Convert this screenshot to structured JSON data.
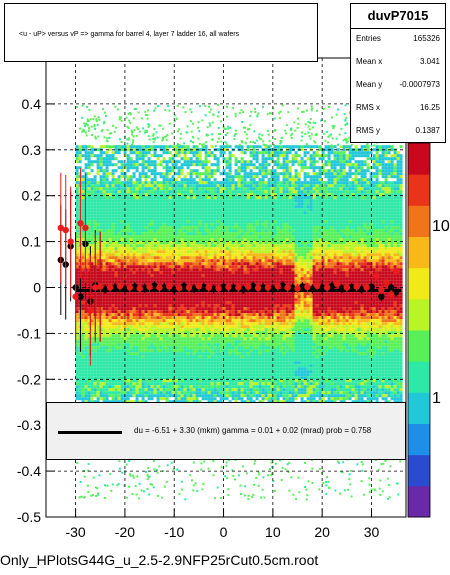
{
  "chart_data": {
    "type": "scatter",
    "subtype": "2D histogram (colz) with profile overlay and fitted line",
    "histogram_name": "duvP7015",
    "title": "<u - uP>       versus   vP =>  gamma for barrel 4, layer 7 ladder 16, all wafers",
    "xlabel": "",
    "ylabel": "",
    "xlim": [
      -36,
      37
    ],
    "ylim": [
      -0.5,
      0.5
    ],
    "x_ticks": [
      -30,
      -20,
      -10,
      0,
      10,
      20,
      30
    ],
    "y_ticks": [
      -0.5,
      -0.4,
      -0.3,
      -0.2,
      -0.1,
      0,
      0.1,
      0.2,
      0.3,
      0.4
    ],
    "y_tick_labels": [
      "-0.5",
      "-0.4",
      "-0.3",
      "-0.2",
      "-0.1",
      "0",
      "0.1",
      "0.2",
      "0.3",
      "0.4"
    ],
    "colorbar_ticks": [
      {
        "value": 1,
        "label": "1"
      },
      {
        "value": 10,
        "label": "10"
      }
    ],
    "colorbar_scale": "log",
    "colorbar_colors": [
      "#6a2aa8",
      "#2a4ad0",
      "#1e8fe8",
      "#22c8d8",
      "#2ee8a8",
      "#58f058",
      "#b8f428",
      "#f0ea1a",
      "#f8b81a",
      "#f07418",
      "#e83418",
      "#c8081c"
    ],
    "grid": true,
    "stats": {
      "Entries": "165326",
      "Mean x": "3.041",
      "Mean y": "-0.0007973",
      "RMS x": "16.25",
      "RMS y": "0.1387"
    },
    "fit_text": "du =    -6.51 +   3.30 (mkm) gamma =     0.01 +   0.02 (mrad) prob = 0.758",
    "fit_line": {
      "x": [
        -30,
        36
      ],
      "y": [
        -0.0065,
        -0.0065
      ]
    },
    "density_region": {
      "x": [
        -30,
        36
      ],
      "y": [
        -0.28,
        0.31
      ]
    },
    "profile_black": {
      "x": [
        -33,
        -32,
        -31,
        -30,
        -29,
        -28,
        -27,
        -26,
        -25,
        -24,
        -22,
        -20,
        -18,
        -16,
        -14,
        -12,
        -10,
        -8,
        -6,
        -4,
        -2,
        0,
        2,
        4,
        6,
        8,
        10,
        12,
        14,
        16,
        18,
        20,
        22,
        24,
        26,
        28,
        30,
        32,
        34,
        35
      ],
      "y": [
        0.06,
        0.05,
        0.09,
        0.0,
        -0.02,
        0.095,
        -0.03,
        0.005,
        0.002,
        -0.004,
        0.0,
        -0.003,
        0.002,
        -0.001,
        0.004,
        0.0,
        -0.004,
        0.003,
        -0.002,
        0.001,
        -0.003,
        0.002,
        0.0,
        -0.004,
        0.003,
        0.0,
        -0.002,
        0.004,
        -0.001,
        0.002,
        -0.003,
        0.0,
        0.003,
        -0.002,
        0.001,
        -0.004,
        0.002,
        -0.02,
        0.0,
        -0.01
      ]
    },
    "profile_red": {
      "x": [
        -33,
        -32,
        -31,
        -30,
        -29,
        -28,
        -27,
        -26,
        -25,
        -23,
        -21,
        -19,
        -17,
        -15,
        -13,
        -11,
        -9,
        -7,
        -5,
        -3,
        -1,
        1,
        3,
        5,
        7,
        9,
        11,
        13,
        15,
        17,
        19,
        21,
        23,
        25,
        27,
        29,
        31,
        32,
        33,
        34,
        35
      ],
      "y": [
        0.13,
        0.125,
        0.1,
        -0.02,
        0.14,
        0.13,
        -0.05,
        0.0,
        0.002,
        0.0,
        0.003,
        0.0,
        -0.002,
        0.001,
        0.0,
        0.002,
        -0.001,
        0.0,
        0.003,
        0.0,
        -0.002,
        0.001,
        0.0,
        0.002,
        -0.001,
        0.0,
        0.003,
        0.0,
        -0.002,
        0.001,
        0.004,
        0.0,
        0.008,
        0.0,
        0.002,
        0.0,
        0.025,
        -0.005,
        0.01,
        -0.015,
        0.035
      ]
    }
  },
  "footer": "Only_HPlotsG44G_u_2.5-2.9NFP25rCut0.5cm.root"
}
